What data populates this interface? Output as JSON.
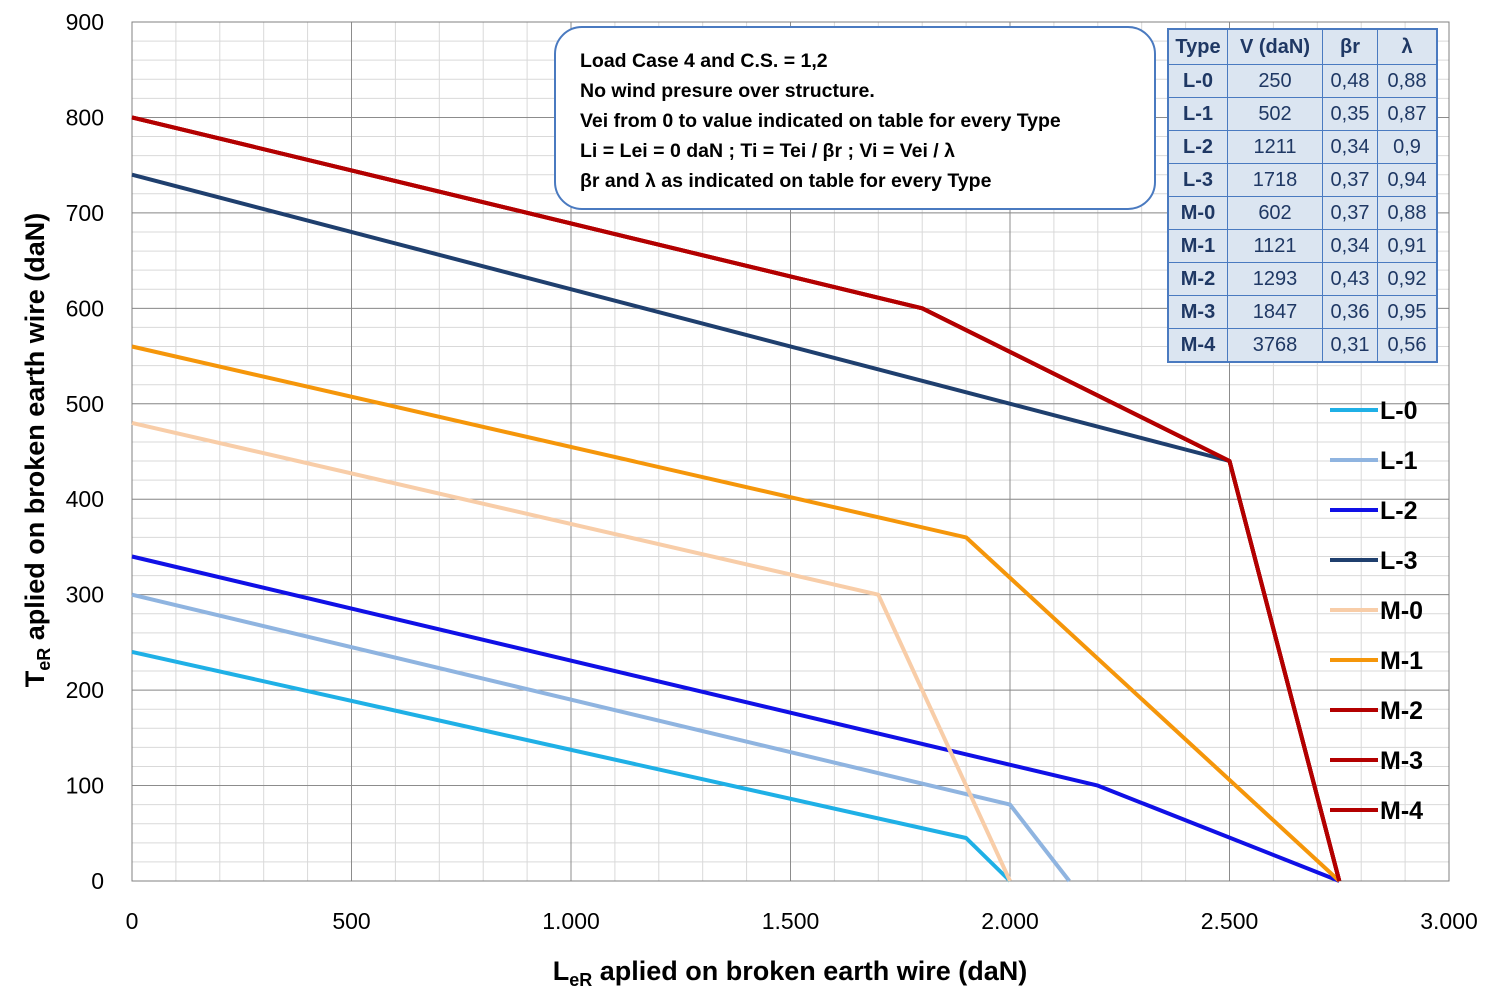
{
  "chart_data": {
    "type": "line",
    "xlabel_main": "L",
    "xlabel_sub": "eR",
    "xlabel_rest": " aplied on broken earth wire (daN)",
    "ylabel_main": "T",
    "ylabel_sub": "eR",
    "ylabel_rest": "  aplied on broken earth wire (daN)",
    "xlim": [
      0,
      3000
    ],
    "ylim": [
      0,
      900
    ],
    "x_ticks": [
      0,
      500,
      1000,
      1500,
      2000,
      2500,
      3000
    ],
    "x_tick_labels": [
      "0",
      "500",
      "1.000",
      "1.500",
      "2.000",
      "2.500",
      "3.000"
    ],
    "y_ticks": [
      0,
      100,
      200,
      300,
      400,
      500,
      600,
      700,
      800,
      900
    ],
    "y_tick_labels": [
      "0",
      "100",
      "200",
      "300",
      "400",
      "500",
      "600",
      "700",
      "800",
      "900"
    ],
    "grid": true,
    "legend_position": "right",
    "series": [
      {
        "name": "L-0",
        "color": "#1fb0e6",
        "points": [
          [
            0,
            240
          ],
          [
            1900,
            45
          ],
          [
            2000,
            0
          ]
        ]
      },
      {
        "name": "L-1",
        "color": "#8fb4e0",
        "points": [
          [
            0,
            300
          ],
          [
            2000,
            80
          ],
          [
            2135,
            0
          ]
        ]
      },
      {
        "name": "L-2",
        "color": "#1010e6",
        "points": [
          [
            0,
            340
          ],
          [
            2200,
            100
          ],
          [
            2750,
            0
          ]
        ]
      },
      {
        "name": "L-3",
        "color": "#1f3f6e",
        "points": [
          [
            0,
            740
          ],
          [
            2500,
            440
          ],
          [
            2750,
            0
          ]
        ]
      },
      {
        "name": "M-0",
        "color": "#f8cda8",
        "points": [
          [
            0,
            480
          ],
          [
            1700,
            300
          ],
          [
            2000,
            0
          ]
        ]
      },
      {
        "name": "M-1",
        "color": "#f5960a",
        "points": [
          [
            0,
            560
          ],
          [
            1900,
            360
          ],
          [
            2750,
            0
          ]
        ]
      },
      {
        "name": "M-2",
        "color": "#b30000",
        "points": [
          [
            0,
            800
          ],
          [
            1800,
            600
          ],
          [
            2500,
            440
          ],
          [
            2750,
            0
          ]
        ]
      },
      {
        "name": "M-3",
        "color": "#b30000",
        "points": [
          [
            0,
            800
          ],
          [
            1800,
            600
          ],
          [
            2500,
            440
          ],
          [
            2750,
            0
          ]
        ]
      },
      {
        "name": "M-4",
        "color": "#b30000",
        "points": [
          [
            0,
            800
          ],
          [
            1800,
            600
          ],
          [
            2500,
            440
          ],
          [
            2750,
            0
          ]
        ]
      }
    ]
  },
  "note": {
    "lines": [
      "Load Case 4 and C.S. = 1,2",
      "No wind presure over structure.",
      "Vei from 0 to value indicated on table for every Type",
      "Li = Lei = 0 daN ; Ti = Tei / βr  ; Vi = Vei / λ",
      "βr and  λ as indicated on table for every Type"
    ]
  },
  "type_table": {
    "headers": [
      "Type",
      "V (daN)",
      "βr",
      "λ"
    ],
    "rows": [
      [
        "L-0",
        "250",
        "0,48",
        "0,88"
      ],
      [
        "L-1",
        "502",
        "0,35",
        "0,87"
      ],
      [
        "L-2",
        "1211",
        "0,34",
        "0,9"
      ],
      [
        "L-3",
        "1718",
        "0,37",
        "0,94"
      ],
      [
        "M-0",
        "602",
        "0,37",
        "0,88"
      ],
      [
        "M-1",
        "1121",
        "0,34",
        "0,91"
      ],
      [
        "M-2",
        "1293",
        "0,43",
        "0,92"
      ],
      [
        "M-3",
        "1847",
        "0,36",
        "0,95"
      ],
      [
        "M-4",
        "3768",
        "0,31",
        "0,56"
      ]
    ]
  }
}
